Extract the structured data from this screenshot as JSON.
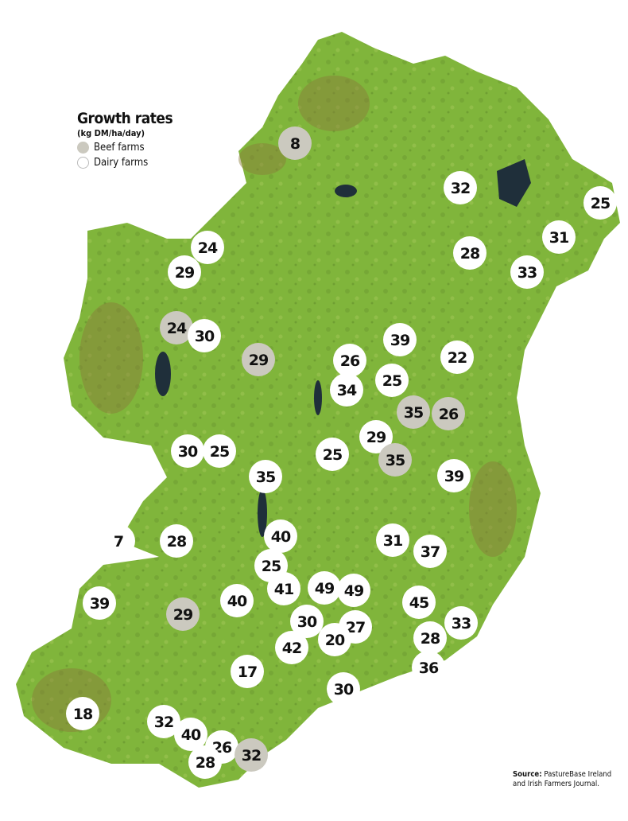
{
  "legend": {
    "title": "Growth rates",
    "unit": "(kg DM/ha/day)",
    "beef_label": "Beef farms",
    "dairy_label": "Dairy farms"
  },
  "colors": {
    "beef": "#cbc9bf",
    "dairy": "#ffffff",
    "land": "#7fb43a",
    "water": "#1f2f3a"
  },
  "source": {
    "label": "Source:",
    "text": "PastureBase Ireland",
    "text2": "and Irish Farmers Journal."
  },
  "farms": [
    {
      "value": "8",
      "type": "beef"
    },
    {
      "value": "32",
      "type": "dairy"
    },
    {
      "value": "25",
      "type": "dairy"
    },
    {
      "value": "31",
      "type": "dairy"
    },
    {
      "value": "24",
      "type": "dairy"
    },
    {
      "value": "28",
      "type": "dairy"
    },
    {
      "value": "33",
      "type": "dairy"
    },
    {
      "value": "29",
      "type": "dairy"
    },
    {
      "value": "24",
      "type": "beef"
    },
    {
      "value": "30",
      "type": "dairy"
    },
    {
      "value": "29",
      "type": "beef"
    },
    {
      "value": "39",
      "type": "dairy"
    },
    {
      "value": "26",
      "type": "dairy"
    },
    {
      "value": "22",
      "type": "dairy"
    },
    {
      "value": "25",
      "type": "dairy"
    },
    {
      "value": "34",
      "type": "dairy"
    },
    {
      "value": "35",
      "type": "beef"
    },
    {
      "value": "26",
      "type": "beef"
    },
    {
      "value": "29",
      "type": "dairy"
    },
    {
      "value": "30",
      "type": "dairy"
    },
    {
      "value": "25",
      "type": "dairy"
    },
    {
      "value": "25",
      "type": "dairy"
    },
    {
      "value": "35",
      "type": "beef"
    },
    {
      "value": "35",
      "type": "dairy"
    },
    {
      "value": "39",
      "type": "dairy"
    },
    {
      "value": "7",
      "type": "dairy"
    },
    {
      "value": "28",
      "type": "dairy"
    },
    {
      "value": "40",
      "type": "dairy"
    },
    {
      "value": "31",
      "type": "dairy"
    },
    {
      "value": "37",
      "type": "dairy"
    },
    {
      "value": "25",
      "type": "dairy"
    },
    {
      "value": "41",
      "type": "dairy"
    },
    {
      "value": "49",
      "type": "dairy"
    },
    {
      "value": "49",
      "type": "dairy"
    },
    {
      "value": "39",
      "type": "dairy"
    },
    {
      "value": "29",
      "type": "beef"
    },
    {
      "value": "40",
      "type": "dairy"
    },
    {
      "value": "45",
      "type": "dairy"
    },
    {
      "value": "33",
      "type": "dairy"
    },
    {
      "value": "30",
      "type": "dairy"
    },
    {
      "value": "27",
      "type": "dairy"
    },
    {
      "value": "20",
      "type": "dairy"
    },
    {
      "value": "42",
      "type": "dairy"
    },
    {
      "value": "28",
      "type": "dairy"
    },
    {
      "value": "17",
      "type": "dairy"
    },
    {
      "value": "36",
      "type": "dairy"
    },
    {
      "value": "30",
      "type": "dairy"
    },
    {
      "value": "18",
      "type": "dairy"
    },
    {
      "value": "32",
      "type": "dairy"
    },
    {
      "value": "40",
      "type": "dairy"
    },
    {
      "value": "26",
      "type": "dairy"
    },
    {
      "value": "28",
      "type": "dairy"
    },
    {
      "value": "32",
      "type": "beef"
    }
  ]
}
